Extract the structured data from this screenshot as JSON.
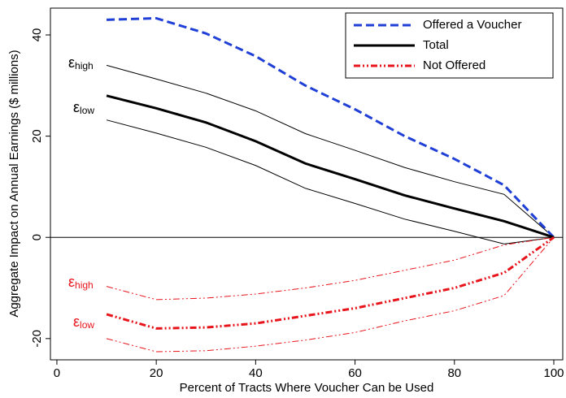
{
  "chart_data": {
    "type": "line",
    "x_label": "Percent of Tracts Where Voucher Can be Used",
    "y_label": "Aggregate Impact on Annual Earnings ($ millions)",
    "x": [
      10,
      20,
      30,
      40,
      50,
      60,
      70,
      80,
      90,
      100
    ],
    "series": [
      {
        "name": "Offered a Voucher",
        "color": "#1f3fd6",
        "style": "dash",
        "values": [
          43,
          43.3,
          40.3,
          35.8,
          30,
          25.3,
          20,
          15.5,
          10.3,
          0
        ]
      },
      {
        "name": "Total",
        "color": "#000000",
        "style": "solid",
        "values": [
          28,
          25.5,
          22.7,
          19,
          14.6,
          11.5,
          8.3,
          5.7,
          3.2,
          0
        ]
      },
      {
        "name": "Not Offered",
        "color": "#e8141c",
        "style": "dashdotdot",
        "values": [
          -15.2,
          -18,
          -17.8,
          -17,
          -15.5,
          -14,
          -12,
          -10,
          -7,
          0
        ]
      }
    ],
    "bands": [
      {
        "color": "#000000",
        "style": "thin",
        "values": [
          34,
          31.3,
          28.5,
          25,
          20.5,
          17.2,
          13.8,
          11,
          8.5,
          0
        ]
      },
      {
        "color": "#000000",
        "style": "thin",
        "values": [
          23.2,
          20.6,
          17.8,
          14.2,
          9.7,
          6.7,
          3.6,
          1.2,
          -1.3,
          0
        ]
      },
      {
        "color": "#e8141c",
        "style": "thindash",
        "values": [
          -9.7,
          -12.3,
          -12,
          -11.2,
          -10,
          -8.5,
          -6.5,
          -4.5,
          -1.5,
          0
        ]
      },
      {
        "color": "#e8141c",
        "style": "thindash",
        "values": [
          -20,
          -22.6,
          -22.4,
          -21.5,
          -20.3,
          -18.8,
          -16.5,
          -14.5,
          -11.5,
          0
        ]
      }
    ],
    "annotations": [
      {
        "text": "ε",
        "sub": "high",
        "color": "#000000"
      },
      {
        "text": "ε",
        "sub": "low",
        "color": "#000000"
      },
      {
        "text": "ε",
        "sub": "high",
        "color": "#e8141c"
      },
      {
        "text": "ε",
        "sub": "low",
        "color": "#e8141c"
      }
    ],
    "xlim": [
      -1.3,
      101.8
    ],
    "ylim": [
      -24.2,
      45.3
    ],
    "xticks": [
      0,
      20,
      40,
      60,
      80,
      100
    ],
    "yticks": [
      -20,
      0,
      20,
      40
    ],
    "zero_line": true,
    "legend": "top-right"
  }
}
